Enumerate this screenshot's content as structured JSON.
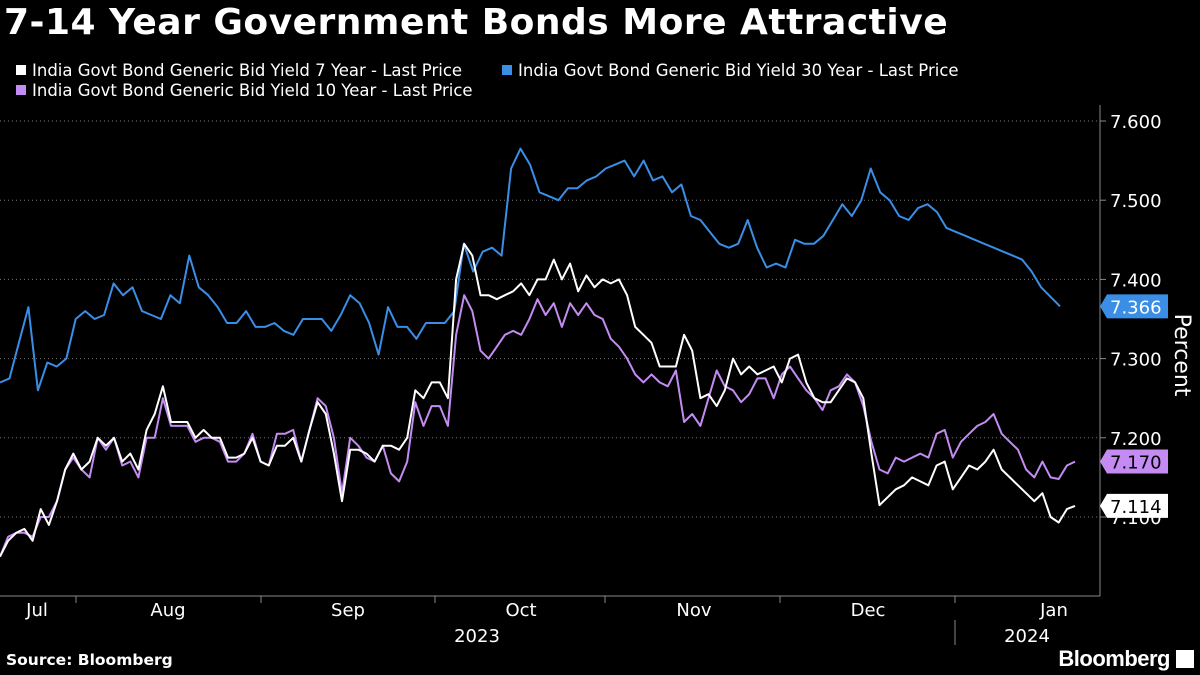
{
  "header": {
    "title": "7-14 Year Government Bonds More Attractive"
  },
  "footer": {
    "source": "Source: Bloomberg",
    "brand": "Bloomberg"
  },
  "chart_data": {
    "type": "line",
    "title": "7-14 Year Government Bonds More Attractive",
    "ylabel": "Percent",
    "ylim": [
      7.03,
      7.63
    ],
    "yticks": [
      7.1,
      7.2,
      7.3,
      7.4,
      7.5,
      7.6
    ],
    "ytick_labels": [
      "7.100",
      "7.200",
      "7.300",
      "7.400",
      "7.500",
      "7.600"
    ],
    "x_axis": {
      "months": [
        "Jul",
        "Aug",
        "Sep",
        "Oct",
        "Nov",
        "Dec",
        "Jan"
      ],
      "years": [
        "2023",
        "2024"
      ]
    },
    "series": [
      {
        "name": "India Govt Bond Generic Bid Yield 7 Year - Last Price",
        "color": "#ffffff",
        "last_label": "7.114",
        "values": [
          7.05,
          7.07,
          7.08,
          7.085,
          7.07,
          7.11,
          7.09,
          7.12,
          7.16,
          7.18,
          7.16,
          7.17,
          7.2,
          7.19,
          7.2,
          7.17,
          7.18,
          7.16,
          7.21,
          7.23,
          7.265,
          7.22,
          7.22,
          7.22,
          7.2,
          7.21,
          7.2,
          7.2,
          7.175,
          7.175,
          7.18,
          7.2,
          7.17,
          7.165,
          7.19,
          7.19,
          7.2,
          7.17,
          7.21,
          7.245,
          7.23,
          7.18,
          7.12,
          7.185,
          7.185,
          7.18,
          7.17,
          7.19,
          7.19,
          7.185,
          7.2,
          7.26,
          7.25,
          7.27,
          7.27,
          7.25,
          7.4,
          7.445,
          7.43,
          7.38,
          7.38,
          7.375,
          7.38,
          7.385,
          7.395,
          7.38,
          7.4,
          7.4,
          7.425,
          7.4,
          7.42,
          7.385,
          7.405,
          7.39,
          7.4,
          7.395,
          7.4,
          7.38,
          7.34,
          7.33,
          7.32,
          7.29,
          7.29,
          7.29,
          7.33,
          7.31,
          7.25,
          7.255,
          7.24,
          7.26,
          7.3,
          7.28,
          7.29,
          7.28,
          7.285,
          7.29,
          7.27,
          7.3,
          7.305,
          7.27,
          7.25,
          7.245,
          7.245,
          7.26,
          7.275,
          7.27,
          7.25,
          7.18,
          7.115,
          7.125,
          7.135,
          7.14,
          7.15,
          7.145,
          7.14,
          7.165,
          7.17,
          7.135,
          7.15,
          7.165,
          7.16,
          7.17,
          7.185,
          7.16,
          7.15,
          7.14,
          7.13,
          7.12,
          7.13,
          7.1,
          7.093,
          7.11,
          7.114
        ]
      },
      {
        "name": "India Govt Bond Generic Bid Yield 30 Year - Last Price",
        "color": "#3a8ee6",
        "last_label": "7.366",
        "values": [
          7.27,
          7.275,
          7.32,
          7.365,
          7.26,
          7.295,
          7.29,
          7.3,
          7.35,
          7.36,
          7.35,
          7.355,
          7.395,
          7.38,
          7.39,
          7.36,
          7.355,
          7.35,
          7.38,
          7.37,
          7.43,
          7.39,
          7.38,
          7.365,
          7.345,
          7.345,
          7.36,
          7.34,
          7.34,
          7.345,
          7.335,
          7.33,
          7.35,
          7.35,
          7.35,
          7.335,
          7.355,
          7.38,
          7.37,
          7.345,
          7.305,
          7.365,
          7.34,
          7.34,
          7.325,
          7.345,
          7.345,
          7.345,
          7.36,
          7.445,
          7.41,
          7.435,
          7.44,
          7.43,
          7.54,
          7.565,
          7.545,
          7.51,
          7.505,
          7.5,
          7.515,
          7.515,
          7.525,
          7.53,
          7.54,
          7.545,
          7.55,
          7.53,
          7.55,
          7.525,
          7.53,
          7.51,
          7.52,
          7.48,
          7.475,
          7.46,
          7.445,
          7.44,
          7.445,
          7.475,
          7.44,
          7.415,
          7.42,
          7.415,
          7.45,
          7.445,
          7.445,
          7.455,
          7.475,
          7.495,
          7.48,
          7.5,
          7.54,
          7.51,
          7.5,
          7.48,
          7.475,
          7.49,
          7.495,
          7.485,
          7.465,
          7.46,
          7.455,
          7.45,
          7.445,
          7.44,
          7.435,
          7.43,
          7.425,
          7.41,
          7.39,
          7.378,
          7.366
        ]
      },
      {
        "name": "India Govt Bond Generic Bid Yield 10 Year - Last Price",
        "color": "#c48bf2",
        "last_label": "7.170",
        "values": [
          7.05,
          7.075,
          7.08,
          7.08,
          7.075,
          7.1,
          7.1,
          7.12,
          7.16,
          7.175,
          7.16,
          7.15,
          7.2,
          7.185,
          7.2,
          7.165,
          7.17,
          7.15,
          7.2,
          7.2,
          7.25,
          7.215,
          7.215,
          7.215,
          7.195,
          7.2,
          7.2,
          7.195,
          7.17,
          7.17,
          7.18,
          7.205,
          7.17,
          7.165,
          7.205,
          7.205,
          7.21,
          7.17,
          7.21,
          7.25,
          7.24,
          7.2,
          7.13,
          7.2,
          7.19,
          7.175,
          7.17,
          7.19,
          7.155,
          7.145,
          7.17,
          7.245,
          7.215,
          7.24,
          7.24,
          7.215,
          7.33,
          7.38,
          7.36,
          7.31,
          7.3,
          7.315,
          7.33,
          7.335,
          7.33,
          7.35,
          7.375,
          7.355,
          7.37,
          7.34,
          7.37,
          7.355,
          7.37,
          7.355,
          7.35,
          7.325,
          7.315,
          7.3,
          7.28,
          7.27,
          7.28,
          7.27,
          7.265,
          7.285,
          7.22,
          7.23,
          7.215,
          7.25,
          7.285,
          7.265,
          7.26,
          7.245,
          7.255,
          7.275,
          7.275,
          7.25,
          7.28,
          7.29,
          7.275,
          7.26,
          7.25,
          7.235,
          7.26,
          7.265,
          7.28,
          7.27,
          7.24,
          7.195,
          7.16,
          7.155,
          7.175,
          7.17,
          7.175,
          7.18,
          7.175,
          7.205,
          7.21,
          7.175,
          7.195,
          7.205,
          7.215,
          7.22,
          7.23,
          7.205,
          7.195,
          7.185,
          7.16,
          7.15,
          7.17,
          7.15,
          7.148,
          7.165,
          7.17
        ]
      }
    ]
  }
}
